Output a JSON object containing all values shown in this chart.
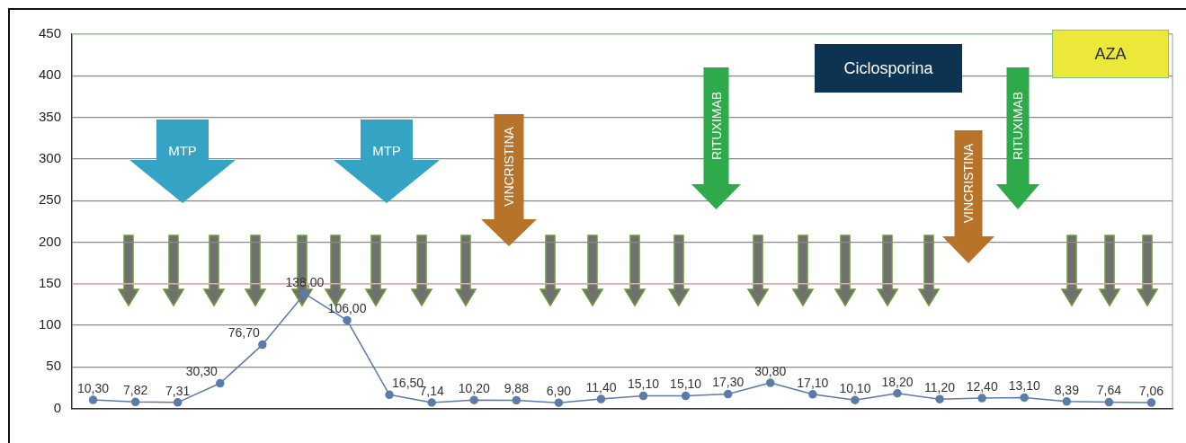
{
  "chart_data": {
    "type": "line",
    "categories": [
      null,
      null,
      null,
      null,
      null,
      null,
      null,
      null,
      null,
      null,
      null,
      null,
      null,
      null,
      null,
      null,
      null,
      null,
      null,
      null,
      null,
      null,
      null,
      null,
      null,
      null
    ],
    "series": [
      {
        "color": "#5b7bab",
        "values": [
          10.3,
          7.82,
          7.31,
          30.3,
          76.7,
          138.0,
          106.0,
          16.5,
          7.14,
          10.2,
          9.88,
          6.9,
          11.4,
          15.1,
          15.1,
          17.3,
          30.8,
          17.1,
          10.1,
          18.2,
          11.2,
          12.4,
          13.1,
          8.39,
          7.64,
          7.06
        ],
        "value_labels": [
          "10,30",
          "7,82",
          "7,31",
          "30,30",
          "76,70",
          "138,00",
          "106,00",
          "16,50",
          "7,14",
          "10,20",
          "9,88",
          "6,90",
          "11,40",
          "15,10",
          "15,10",
          "17,30",
          "30,80",
          "17,10",
          "10,10",
          "18,20",
          "11,20",
          "12,40",
          "13,10",
          "8,39",
          "7,64",
          "7,06"
        ]
      }
    ],
    "ylim": [
      0,
      450
    ],
    "yticks": [
      0,
      50,
      100,
      150,
      200,
      250,
      300,
      350,
      400,
      450
    ],
    "grid": "y",
    "legend": false,
    "marker": "circle",
    "ref_lines": [
      {
        "axis": "y",
        "value": 150,
        "color": "#f2a0a0"
      },
      {
        "axis": "y",
        "value": 450,
        "color": "#a9d8a4"
      }
    ],
    "annotations": [
      "MTP",
      "MTP",
      "VINCRISTINA",
      "RITUXIMAB",
      "Ciclosporina",
      "VINCRISTINA",
      "RITUXIMAB",
      "AZA"
    ]
  }
}
